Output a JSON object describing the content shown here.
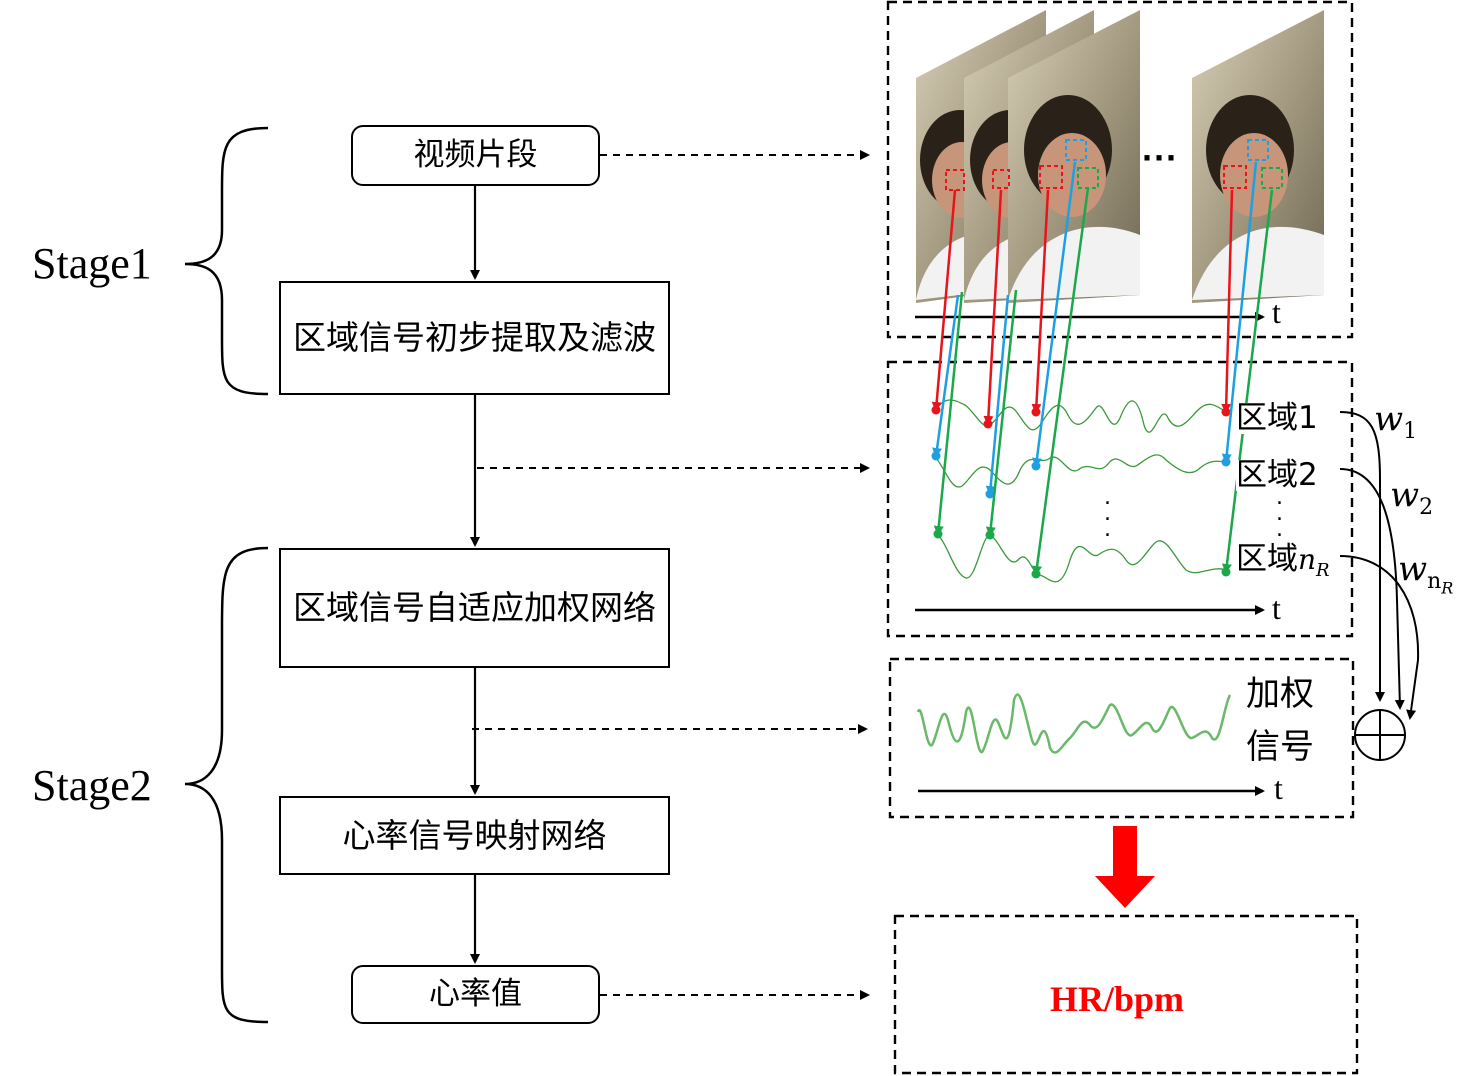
{
  "stages": {
    "stage1": "Stage1",
    "stage2": "Stage2"
  },
  "flow": {
    "video_clip": "视频片段",
    "region_extraction": "区域信号初步提取及滤波",
    "adaptive_weighting": "区域信号自适应加权网络",
    "hr_mapping": "心率信号映射网络",
    "hr_value": "心率值"
  },
  "regions": {
    "region_prefix": "区域",
    "r1_index": "1",
    "r2_index": "2",
    "rn_index": "n",
    "rn_sub": "R"
  },
  "weights": {
    "w": "w",
    "w1_sub": "1",
    "w2_sub": "2",
    "wn_sub": "n",
    "wn_subsub": "R"
  },
  "axis": {
    "t": "t"
  },
  "weighted_signal": "加权信号",
  "output": "HR/bpm",
  "frames_ellipsis": "···",
  "colors": {
    "region1": "#e8141c",
    "region2": "#1ea0e0",
    "region3": "#1aa84a",
    "signal": "#3a9a3a",
    "output_arrow": "#ff0000"
  }
}
